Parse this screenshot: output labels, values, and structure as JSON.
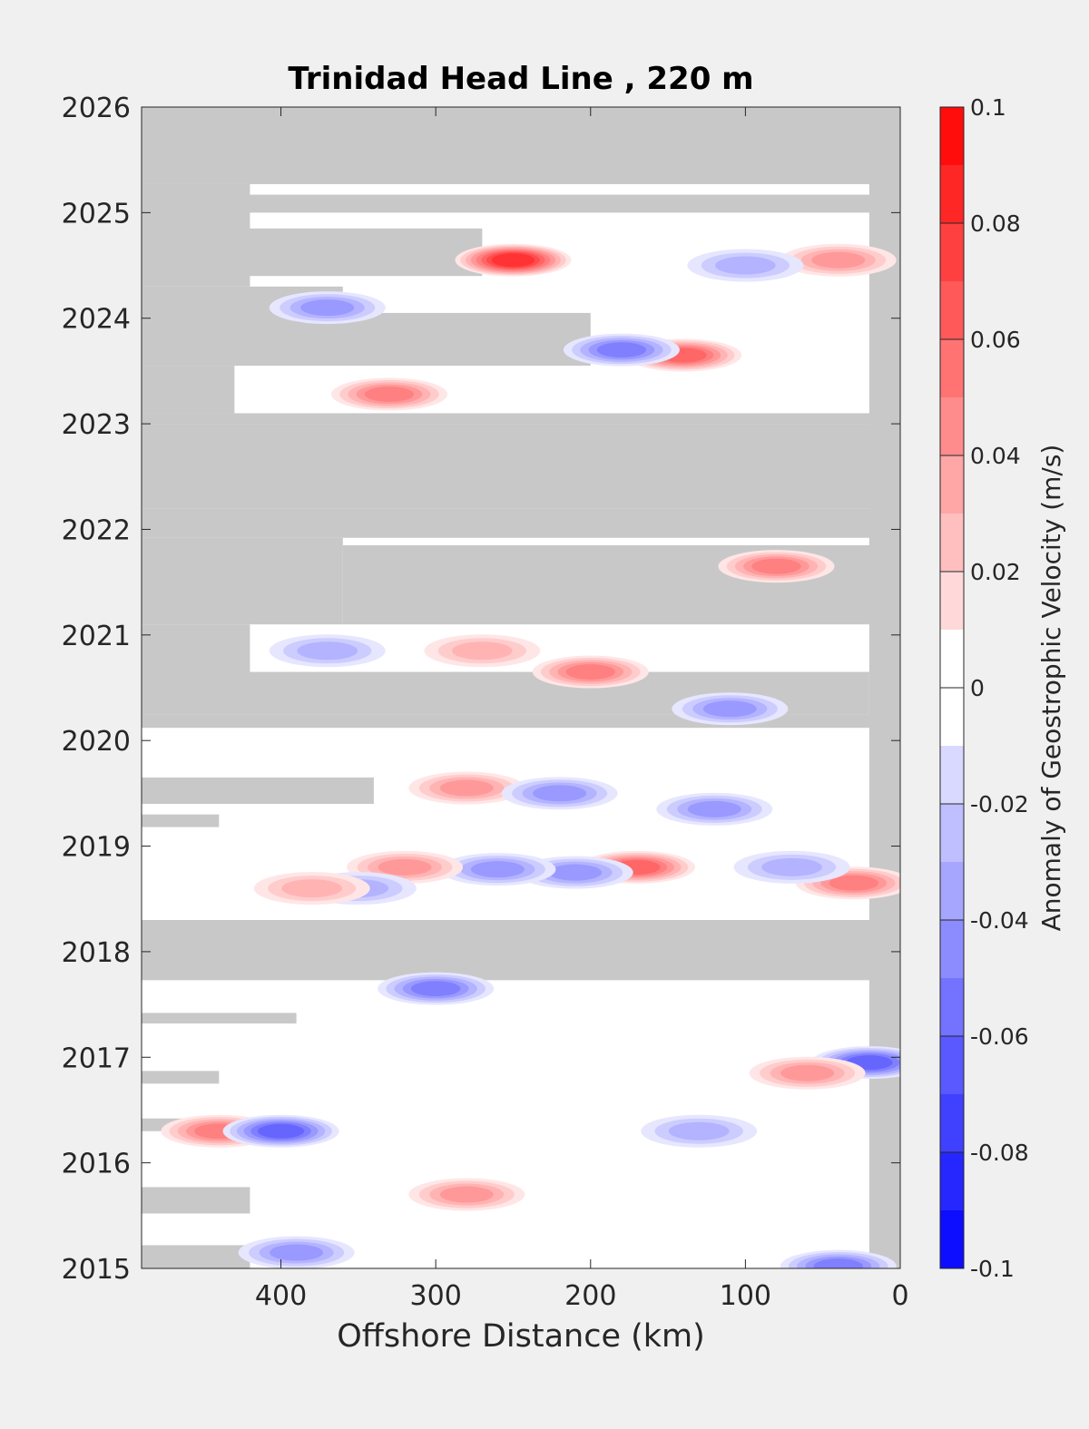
{
  "chart_data": {
    "type": "heatmap",
    "title": "Trinidad Head Line , 220 m",
    "xlabel": "Offshore Distance (km)",
    "ylabel": "",
    "xlim": [
      490,
      0
    ],
    "ylim": [
      2015,
      2026
    ],
    "x_reversed": true,
    "xticks": [
      400,
      300,
      200,
      100,
      0
    ],
    "yticks": [
      2015,
      2016,
      2017,
      2018,
      2019,
      2020,
      2021,
      2022,
      2023,
      2024,
      2025,
      2026
    ],
    "colorbar": {
      "label": "Anomaly of Geostrophic Velocity (m/s)",
      "min": -0.1,
      "max": 0.1,
      "step": 0.01,
      "ticks": [
        -0.1,
        -0.08,
        -0.06,
        -0.04,
        -0.02,
        0,
        0.02,
        0.04,
        0.06,
        0.08,
        0.1
      ],
      "tick_labels": [
        "-0.1",
        "-0.08",
        "-0.06",
        "-0.04",
        "-0.02",
        "0",
        "0.02",
        "0.04",
        "0.06",
        "0.08",
        "0.1"
      ],
      "negative_color": "#0000ff",
      "zero_color": "#ffffff",
      "positive_color": "#ff0000"
    },
    "missing_color": "#c8c8c8",
    "missing_regions": [
      {
        "x_from": 490,
        "x_to": 0,
        "y_from": 2025.27,
        "y_to": 2026
      },
      {
        "x_from": 490,
        "x_to": 0,
        "y_from": 2025.0,
        "y_to": 2025.17
      },
      {
        "x_from": 490,
        "x_to": 420,
        "y_from": 2024.3,
        "y_to": 2025.27
      },
      {
        "x_from": 490,
        "x_to": 270,
        "y_from": 2024.4,
        "y_to": 2024.85
      },
      {
        "x_from": 490,
        "x_to": 200,
        "y_from": 2023.55,
        "y_to": 2024.05
      },
      {
        "x_from": 490,
        "x_to": 360,
        "y_from": 2024.0,
        "y_to": 2024.3
      },
      {
        "x_from": 490,
        "x_to": 430,
        "y_from": 2023.1,
        "y_to": 2023.55
      },
      {
        "x_from": 490,
        "x_to": 0,
        "y_from": 2023.0,
        "y_to": 2023.1
      },
      {
        "x_from": 490,
        "x_to": 0,
        "y_from": 2022.2,
        "y_to": 2023.0
      },
      {
        "x_from": 490,
        "x_to": 0,
        "y_from": 2021.92,
        "y_to": 2022.2
      },
      {
        "x_from": 490,
        "x_to": 360,
        "y_from": 2021.1,
        "y_to": 2021.92
      },
      {
        "x_from": 360,
        "x_to": 0,
        "y_from": 2021.1,
        "y_to": 2021.85
      },
      {
        "x_from": 490,
        "x_to": 420,
        "y_from": 2020.6,
        "y_to": 2021.1
      },
      {
        "x_from": 490,
        "x_to": 20,
        "y_from": 2020.25,
        "y_to": 2020.65
      },
      {
        "x_from": 490,
        "x_to": 0,
        "y_from": 2020.12,
        "y_to": 2020.25
      },
      {
        "x_from": 490,
        "x_to": 340,
        "y_from": 2019.4,
        "y_to": 2019.65
      },
      {
        "x_from": 490,
        "x_to": 440,
        "y_from": 2019.18,
        "y_to": 2019.3
      },
      {
        "x_from": 490,
        "x_to": 0,
        "y_from": 2017.73,
        "y_to": 2018.3
      },
      {
        "x_from": 490,
        "x_to": 390,
        "y_from": 2017.32,
        "y_to": 2017.42
      },
      {
        "x_from": 490,
        "x_to": 440,
        "y_from": 2016.75,
        "y_to": 2016.87
      },
      {
        "x_from": 490,
        "x_to": 450,
        "y_from": 2016.3,
        "y_to": 2016.42
      },
      {
        "x_from": 490,
        "x_to": 420,
        "y_from": 2015.52,
        "y_to": 2015.77
      },
      {
        "x_from": 490,
        "x_to": 420,
        "y_from": 2015.0,
        "y_to": 2015.22
      },
      {
        "x_from": 20,
        "x_to": 0,
        "y_from": 2015.0,
        "y_to": 2026
      }
    ],
    "anomaly_features": [
      {
        "x": 250,
        "y": 2024.55,
        "value": 0.08
      },
      {
        "x": 140,
        "y": 2023.65,
        "value": 0.06
      },
      {
        "x": 170,
        "y": 2018.8,
        "value": 0.06
      },
      {
        "x": 330,
        "y": 2023.28,
        "value": 0.05
      },
      {
        "x": 440,
        "y": 2016.3,
        "value": 0.05
      },
      {
        "x": 30,
        "y": 2018.65,
        "value": 0.05
      },
      {
        "x": 180,
        "y": 2023.7,
        "value": -0.05
      },
      {
        "x": 400,
        "y": 2016.3,
        "value": -0.06
      },
      {
        "x": 300,
        "y": 2017.65,
        "value": -0.05
      },
      {
        "x": 20,
        "y": 2016.95,
        "value": -0.06
      },
      {
        "x": 40,
        "y": 2015.02,
        "value": -0.05
      },
      {
        "x": 210,
        "y": 2018.75,
        "value": -0.04
      },
      {
        "x": 260,
        "y": 2018.78,
        "value": -0.04
      },
      {
        "x": 120,
        "y": 2019.35,
        "value": -0.04
      },
      {
        "x": 200,
        "y": 2020.65,
        "value": 0.05
      },
      {
        "x": 80,
        "y": 2021.65,
        "value": 0.05
      },
      {
        "x": 40,
        "y": 2024.55,
        "value": 0.04
      },
      {
        "x": 370,
        "y": 2020.85,
        "value": -0.03
      },
      {
        "x": 270,
        "y": 2020.85,
        "value": 0.03
      },
      {
        "x": 320,
        "y": 2018.8,
        "value": 0.04
      },
      {
        "x": 350,
        "y": 2018.6,
        "value": -0.03
      },
      {
        "x": 380,
        "y": 2018.6,
        "value": 0.03
      },
      {
        "x": 280,
        "y": 2019.55,
        "value": 0.04
      },
      {
        "x": 220,
        "y": 2019.5,
        "value": -0.04
      },
      {
        "x": 390,
        "y": 2015.15,
        "value": -0.04
      },
      {
        "x": 280,
        "y": 2015.7,
        "value": 0.04
      },
      {
        "x": 70,
        "y": 2018.8,
        "value": -0.03
      },
      {
        "x": 130,
        "y": 2016.3,
        "value": -0.03
      },
      {
        "x": 60,
        "y": 2016.85,
        "value": 0.04
      },
      {
        "x": 370,
        "y": 2024.1,
        "value": -0.04
      },
      {
        "x": 100,
        "y": 2024.5,
        "value": -0.03
      },
      {
        "x": 110,
        "y": 2020.3,
        "value": -0.04
      }
    ]
  }
}
